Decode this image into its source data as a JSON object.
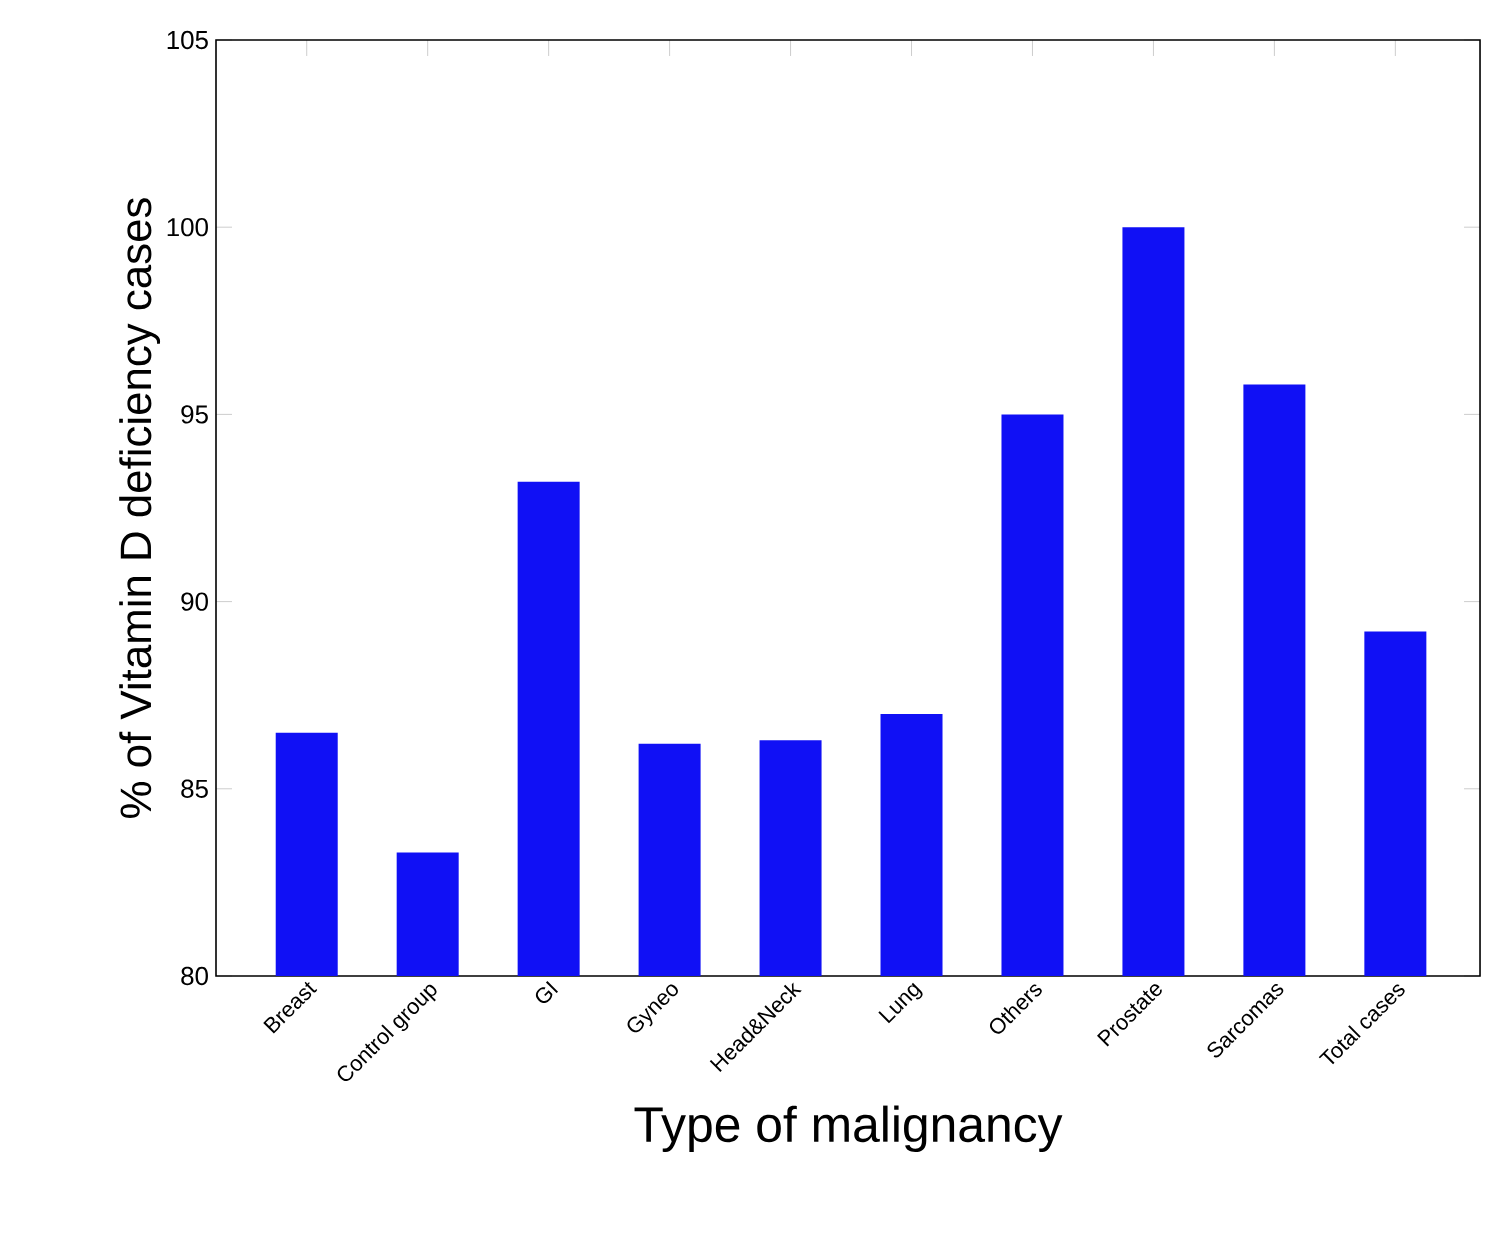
{
  "chart_data": {
    "type": "bar",
    "xlabel": "Type of malignancy",
    "ylabel": "% of Vitamin D deficiency cases",
    "categories": [
      "Breast",
      "Control group",
      "GI",
      "Gyneo",
      "Head&Neck",
      "Lung",
      "Others",
      "Prostate",
      "Sarcomas",
      "Total cases"
    ],
    "values": [
      86.5,
      83.3,
      93.2,
      86.2,
      86.3,
      87.0,
      95.0,
      100,
      95.8,
      89.2
    ],
    "color": "#1010f5",
    "ylim": [
      80,
      105
    ],
    "yticks": [
      80,
      85,
      90,
      95,
      100,
      105
    ],
    "grid": false
  }
}
